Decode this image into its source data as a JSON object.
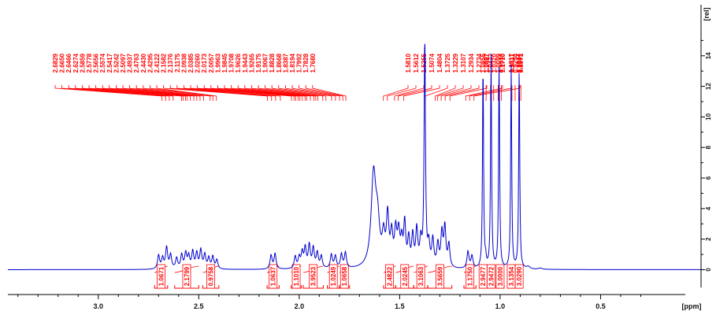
{
  "chart_data": {
    "type": "line",
    "title": "",
    "xlabel": "[ppm]",
    "ylabel": "[rel]",
    "xlim": [
      3.45,
      0.0
    ],
    "ylim": [
      -0.8,
      16.0
    ],
    "x_reversed": true,
    "x_ticks": [
      "3.0",
      "2.5",
      "2.0",
      "1.5",
      "1.0",
      "0.5"
    ],
    "y_ticks": [
      "0",
      "2",
      "4",
      "6",
      "8",
      "10",
      "12",
      "14"
    ],
    "series": [
      {
        "peaks": [
          {
            "x": 2.7,
            "y": 0.9,
            "w": 0.006
          },
          {
            "x": 2.68,
            "y": 0.7,
            "w": 0.006
          },
          {
            "x": 2.66,
            "y": 1.4,
            "w": 0.006
          },
          {
            "x": 2.64,
            "y": 0.9,
            "w": 0.006
          },
          {
            "x": 2.61,
            "y": 0.7,
            "w": 0.006
          },
          {
            "x": 2.585,
            "y": 0.9,
            "w": 0.006
          },
          {
            "x": 2.565,
            "y": 1.0,
            "w": 0.006
          },
          {
            "x": 2.55,
            "y": 0.8,
            "w": 0.006
          },
          {
            "x": 2.53,
            "y": 1.1,
            "w": 0.006
          },
          {
            "x": 2.51,
            "y": 1.0,
            "w": 0.006
          },
          {
            "x": 2.49,
            "y": 1.2,
            "w": 0.006
          },
          {
            "x": 2.47,
            "y": 0.9,
            "w": 0.006
          },
          {
            "x": 2.45,
            "y": 0.7,
            "w": 0.006
          },
          {
            "x": 2.43,
            "y": 0.8,
            "w": 0.006
          },
          {
            "x": 2.41,
            "y": 0.6,
            "w": 0.006
          },
          {
            "x": 2.14,
            "y": 0.9,
            "w": 0.006
          },
          {
            "x": 2.12,
            "y": 1.0,
            "w": 0.006
          },
          {
            "x": 2.02,
            "y": 0.8,
            "w": 0.006
          },
          {
            "x": 2.0,
            "y": 0.7,
            "w": 0.006
          },
          {
            "x": 1.985,
            "y": 1.0,
            "w": 0.006
          },
          {
            "x": 1.97,
            "y": 1.3,
            "w": 0.006
          },
          {
            "x": 1.95,
            "y": 1.5,
            "w": 0.006
          },
          {
            "x": 1.93,
            "y": 1.3,
            "w": 0.006
          },
          {
            "x": 1.91,
            "y": 1.0,
            "w": 0.006
          },
          {
            "x": 1.89,
            "y": 0.8,
            "w": 0.006
          },
          {
            "x": 1.84,
            "y": 0.9,
            "w": 0.006
          },
          {
            "x": 1.82,
            "y": 0.8,
            "w": 0.006
          },
          {
            "x": 1.79,
            "y": 0.9,
            "w": 0.006
          },
          {
            "x": 1.77,
            "y": 1.0,
            "w": 0.006
          },
          {
            "x": 1.63,
            "y": 6.0,
            "w": 0.014
          },
          {
            "x": 1.61,
            "y": 2.5,
            "w": 0.012
          },
          {
            "x": 1.58,
            "y": 1.8,
            "w": 0.008
          },
          {
            "x": 1.56,
            "y": 3.2,
            "w": 0.007
          },
          {
            "x": 1.54,
            "y": 2.0,
            "w": 0.007
          },
          {
            "x": 1.52,
            "y": 2.2,
            "w": 0.007
          },
          {
            "x": 1.505,
            "y": 2.1,
            "w": 0.007
          },
          {
            "x": 1.49,
            "y": 1.5,
            "w": 0.006
          },
          {
            "x": 1.475,
            "y": 2.8,
            "w": 0.006
          },
          {
            "x": 1.455,
            "y": 1.8,
            "w": 0.006
          },
          {
            "x": 1.435,
            "y": 2.0,
            "w": 0.006
          },
          {
            "x": 1.415,
            "y": 2.4,
            "w": 0.006
          },
          {
            "x": 1.395,
            "y": 1.6,
            "w": 0.006
          },
          {
            "x": 1.375,
            "y": 15.0,
            "w": 0.004
          },
          {
            "x": 1.355,
            "y": 1.4,
            "w": 0.006
          },
          {
            "x": 1.335,
            "y": 1.8,
            "w": 0.006
          },
          {
            "x": 1.31,
            "y": 1.5,
            "w": 0.006
          },
          {
            "x": 1.29,
            "y": 2.2,
            "w": 0.006
          },
          {
            "x": 1.275,
            "y": 2.6,
            "w": 0.006
          },
          {
            "x": 1.255,
            "y": 1.5,
            "w": 0.006
          },
          {
            "x": 1.16,
            "y": 1.1,
            "w": 0.006
          },
          {
            "x": 1.14,
            "y": 0.8,
            "w": 0.006
          },
          {
            "x": 1.085,
            "y": 13.6,
            "w": 0.003
          },
          {
            "x": 1.072,
            "y": 0.5,
            "w": 0.003
          },
          {
            "x": 1.045,
            "y": 14.0,
            "w": 0.003
          },
          {
            "x": 1.005,
            "y": 13.6,
            "w": 0.003
          },
          {
            "x": 0.945,
            "y": 13.3,
            "w": 0.003
          },
          {
            "x": 0.905,
            "y": 13.3,
            "w": 0.003
          },
          {
            "x": 0.86,
            "y": 0.15,
            "w": 0.01
          },
          {
            "x": 0.8,
            "y": 0.08,
            "w": 0.01
          }
        ]
      }
    ],
    "peak_labels": [
      "2.6829",
      "2.6650",
      "2.6466",
      "2.6274",
      "2.5859",
      "2.5778",
      "2.5656",
      "2.5574",
      "2.5417",
      "2.5242",
      "2.5097",
      "2.4937",
      "2.4763",
      "2.4430",
      "2.4295",
      "2.4122",
      "2.1582",
      "2.1376",
      "2.1175",
      "2.0938",
      "2.0385",
      "2.0260",
      "2.0173",
      "2.0057",
      "1.9963",
      "1.9845",
      "1.9708",
      "1.9626",
      "1.9443",
      "1.9265",
      "1.9175",
      "1.9067",
      "1.8828",
      "1.8668",
      "1.8387",
      "1.8194",
      "1.7992",
      "1.7828",
      "1.7680",
      "1.5810",
      "1.5612",
      "1.5255",
      "1.5074",
      "1.4804",
      "1.3725",
      "1.3229",
      "1.3107",
      "1.2934",
      "1.2734",
      "1.2497",
      "1.1710",
      "1.1517",
      "1.1301",
      "1.0855",
      "1.0697",
      "1.0477",
      "1.0320",
      "1.0099",
      "0.9938",
      "0.9411",
      "0.9254",
      "0.9074",
      "0.8971"
    ],
    "integrals": [
      {
        "from": 2.72,
        "to": 2.655,
        "value": "1.0671"
      },
      {
        "from": 2.62,
        "to": 2.5,
        "value": "2.1799"
      },
      {
        "from": 2.48,
        "to": 2.4,
        "value": "0.9758"
      },
      {
        "from": 2.16,
        "to": 2.1,
        "value": "1.0637"
      },
      {
        "from": 2.04,
        "to": 1.99,
        "value": "1.1010"
      },
      {
        "from": 1.98,
        "to": 1.88,
        "value": "3.9523"
      },
      {
        "from": 1.86,
        "to": 1.8,
        "value": "1.0249"
      },
      {
        "from": 1.8,
        "to": 1.75,
        "value": "1.0658"
      },
      {
        "from": 1.58,
        "to": 1.52,
        "value": "2.4822"
      },
      {
        "from": 1.52,
        "to": 1.43,
        "value": "2.0245"
      },
      {
        "from": 1.43,
        "to": 1.36,
        "value": "3.1063"
      },
      {
        "from": 1.36,
        "to": 1.24,
        "value": "3.5659"
      },
      {
        "from": 1.18,
        "to": 1.12,
        "value": "1.1750"
      },
      {
        "from": 1.1,
        "to": 1.07,
        "value": "2.9477"
      },
      {
        "from": 1.06,
        "to": 1.03,
        "value": "2.9472"
      },
      {
        "from": 1.02,
        "to": 0.98,
        "value": "3.0000"
      },
      {
        "from": 0.96,
        "to": 0.93,
        "value": "3.1354"
      },
      {
        "from": 0.92,
        "to": 0.89,
        "value": "3.0290"
      }
    ],
    "colors": {
      "spectrum": "#0000cc",
      "annotations": "#ff0000",
      "axis": "#000000"
    },
    "grid": false
  }
}
